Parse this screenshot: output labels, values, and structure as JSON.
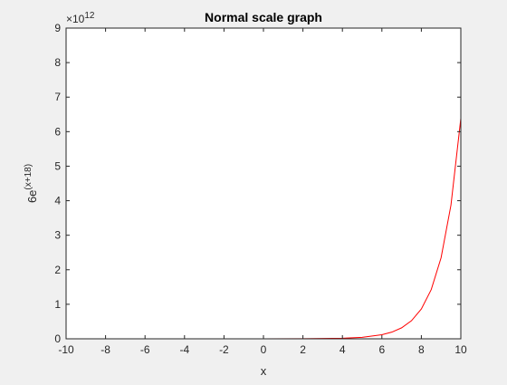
{
  "chart_data": {
    "type": "line",
    "title": "Normal scale graph",
    "xlabel": "x",
    "ylabel": {
      "base": "6e",
      "exponent": "(x+18)"
    },
    "y_exponent_label": {
      "base": "×10",
      "exponent": "12"
    },
    "xlim": [
      -10,
      10
    ],
    "ylim": [
      0,
      9
    ],
    "x_ticks": [
      "-10",
      "-8",
      "-6",
      "-4",
      "-2",
      "0",
      "2",
      "4",
      "6",
      "8",
      "10"
    ],
    "y_ticks": [
      "0",
      "1",
      "2",
      "3",
      "4",
      "5",
      "6",
      "7",
      "8",
      "9"
    ],
    "x_tick_values": [
      -10,
      -8,
      -6,
      -4,
      -2,
      0,
      2,
      4,
      6,
      8,
      10
    ],
    "y_tick_values": [
      0,
      1,
      2,
      3,
      4,
      5,
      6,
      7,
      8,
      9
    ],
    "y_scale_factor": 1000000000000.0,
    "series": [
      {
        "color": "#ff0000",
        "x": [
          -10,
          -8,
          -6,
          -4,
          -2,
          0,
          2,
          4,
          5,
          6,
          6.5,
          7,
          7.5,
          8,
          8.5,
          9,
          9.5,
          10
        ],
        "y": [
          0,
          0,
          0,
          0,
          0,
          0,
          0.0021,
          0.0158,
          0.043,
          0.1169,
          0.1927,
          0.3178,
          0.524,
          0.864,
          1.4244,
          2.3485,
          3.872,
          6.3838
        ]
      }
    ],
    "grid": false,
    "legend": "none"
  }
}
